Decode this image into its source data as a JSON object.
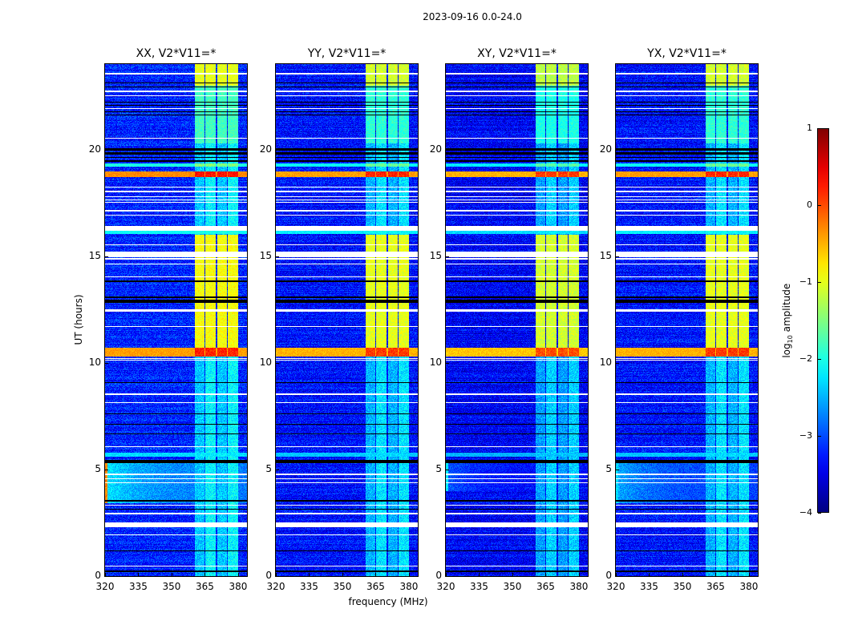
{
  "chart_data": {
    "type": "heatmap",
    "title": "2023-09-16 0.0-24.0",
    "xlabel": "frequency (MHz)",
    "ylabel": "UT (hours)",
    "xlim": [
      320,
      384
    ],
    "ylim": [
      0,
      24
    ],
    "xticks": [
      "320",
      "335",
      "350",
      "365",
      "380"
    ],
    "xtick_values": [
      320,
      335,
      350,
      365,
      380
    ],
    "yticks": [
      "0",
      "5",
      "10",
      "15",
      "20"
    ],
    "ytick_values": [
      0,
      5,
      10,
      15,
      20
    ],
    "colormap": "jet",
    "colorbar": {
      "label_main": "log",
      "label_sub": "10",
      "label_rest": " amplitude",
      "clim": [
        -4,
        1
      ],
      "ticks": [
        "1",
        "0",
        "−1",
        "−2",
        "−3",
        "−4"
      ],
      "tick_values": [
        1,
        0,
        -1,
        -2,
        -3,
        -4
      ]
    },
    "background_level": -3.2,
    "channel_subbands": [
      [
        360.5,
        364.7
      ],
      [
        365.3,
        369.8
      ],
      [
        370.5,
        374.8
      ],
      [
        375.5,
        380.0
      ]
    ],
    "subband_level": -2.3,
    "flagged_rows_white": [
      [
        0.45,
        0.5
      ],
      [
        1.9,
        1.95
      ],
      [
        2.3,
        2.5
      ],
      [
        2.9,
        2.95
      ],
      [
        3.3,
        3.36
      ],
      [
        4.35,
        4.4
      ],
      [
        4.55,
        4.6
      ],
      [
        4.75,
        4.8
      ],
      [
        6.05,
        6.1
      ],
      [
        8.1,
        8.15
      ],
      [
        8.5,
        8.55
      ],
      [
        10.1,
        10.13
      ],
      [
        10.17,
        10.2
      ],
      [
        11.67,
        11.72
      ],
      [
        12.4,
        12.5
      ],
      [
        14.0,
        14.05
      ],
      [
        14.6,
        14.65
      ],
      [
        14.85,
        14.9
      ],
      [
        14.95,
        15.2
      ],
      [
        15.5,
        15.55
      ],
      [
        16.2,
        16.4
      ],
      [
        16.9,
        16.95
      ],
      [
        17.1,
        17.15
      ],
      [
        17.5,
        17.55
      ],
      [
        17.6,
        17.65
      ],
      [
        17.75,
        17.8
      ],
      [
        18.0,
        18.05
      ],
      [
        18.2,
        18.25
      ],
      [
        20.5,
        20.55
      ],
      [
        21.9,
        21.95
      ],
      [
        22.5,
        22.55
      ],
      [
        22.7,
        22.75
      ],
      [
        23.5,
        23.6
      ]
    ],
    "dropout_rows_black": [
      [
        0.2,
        0.25
      ],
      [
        1.15,
        1.2
      ],
      [
        3.1,
        3.15
      ],
      [
        3.5,
        3.55
      ],
      [
        5.3,
        5.45
      ],
      [
        6.65,
        6.7
      ],
      [
        7.1,
        7.14
      ],
      [
        7.6,
        7.64
      ],
      [
        9.04,
        9.08
      ],
      [
        12.8,
        12.95
      ],
      [
        13.05,
        13.1
      ],
      [
        13.8,
        13.85
      ],
      [
        19.4,
        19.5
      ],
      [
        19.6,
        19.65
      ],
      [
        19.75,
        19.85
      ],
      [
        19.95,
        20.05
      ],
      [
        21.6,
        21.65
      ],
      [
        21.75,
        21.8
      ],
      [
        22.05,
        22.1
      ],
      [
        22.2,
        22.25
      ],
      [
        22.9,
        22.95
      ],
      [
        23.1,
        23.15
      ]
    ],
    "rfi_events": [
      {
        "t0": 10.3,
        "t1": 10.7,
        "all": -0.4,
        "band": 0.2
      },
      {
        "t0": 18.7,
        "t1": 18.95,
        "all": -0.3,
        "band": 0.3
      },
      {
        "t0": 10.7,
        "t1": 16.0,
        "all": null,
        "band": -0.9
      },
      {
        "t0": 19.2,
        "t1": 19.35,
        "all": -2.0,
        "band": -1.5
      },
      {
        "t0": 16.05,
        "t1": 16.2,
        "all": -2.1,
        "band": -2.0
      },
      {
        "t0": 20.3,
        "t1": 23.0,
        "all": null,
        "band": -1.8
      },
      {
        "t0": 23.0,
        "t1": 24.0,
        "all": null,
        "band": -1.0
      },
      {
        "t0": 5.6,
        "t1": 5.8,
        "all": -2.3,
        "band": -2.2
      }
    ],
    "panels": [
      {
        "title": "XX, V2*V11=*",
        "offset": 0.0,
        "lowfreq_excess": {
          "t0": 3.4,
          "t1": 5.3,
          "level": -2.2,
          "edge": -0.3
        }
      },
      {
        "title": "YY, V2*V11=*",
        "offset": -0.1,
        "lowfreq_excess": null
      },
      {
        "title": "XY, V2*V11=*",
        "offset": -0.2,
        "lowfreq_excess": {
          "t0": 4.0,
          "t1": 5.3,
          "level": -2.9,
          "edge": -2.2
        }
      },
      {
        "title": "YX, V2*V11=*",
        "offset": -0.1,
        "lowfreq_excess": {
          "t0": 3.4,
          "t1": 5.3,
          "level": -2.5,
          "edge": -2.3
        }
      }
    ]
  }
}
